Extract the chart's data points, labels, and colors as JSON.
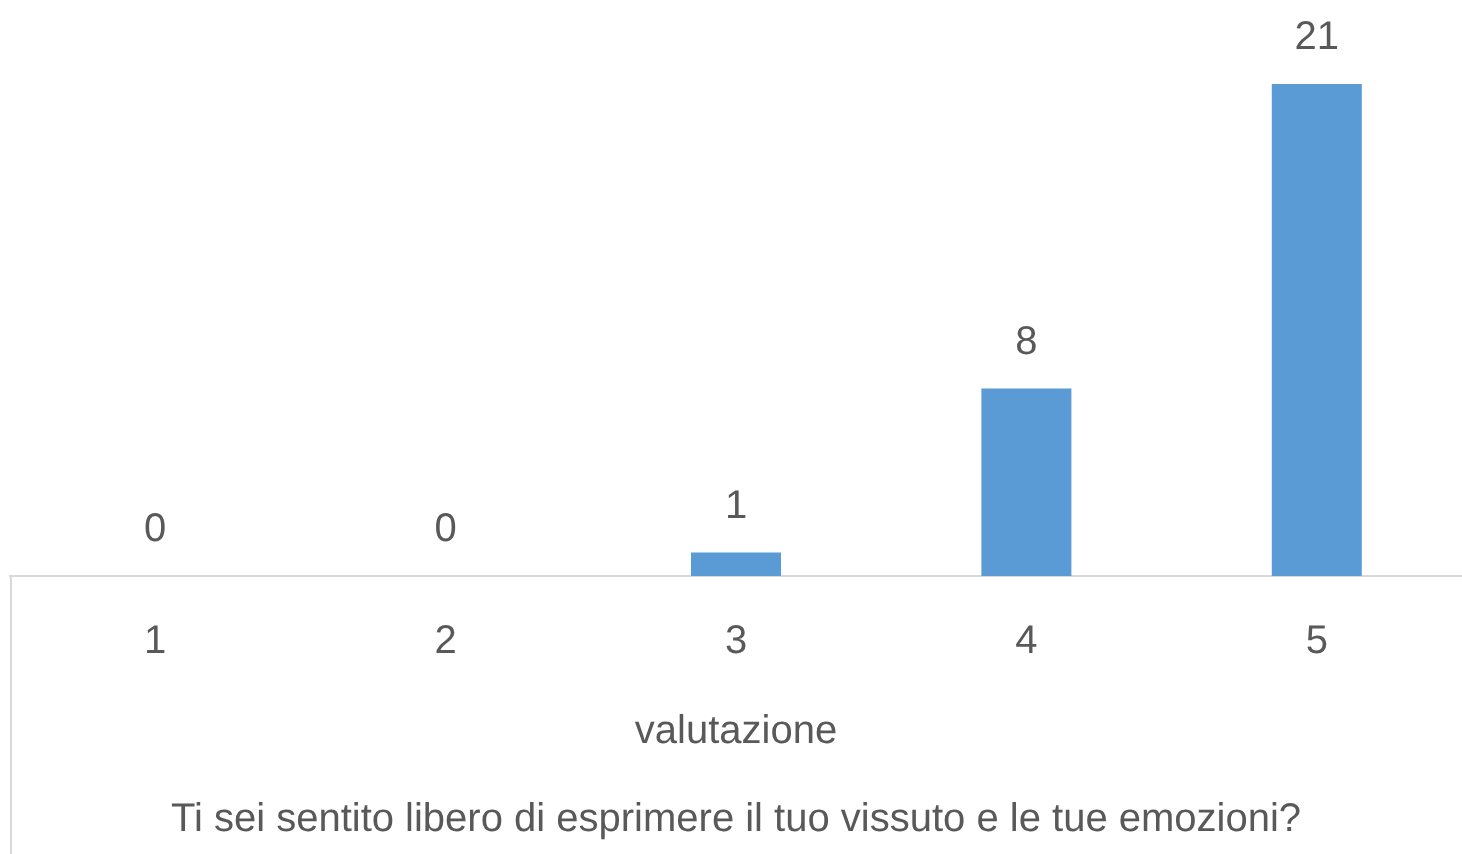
{
  "chart_data": {
    "type": "bar",
    "title": "Ti sei sentito libero di esprimere il tuo vissuto e le tue emozioni?",
    "xlabel": "valutazione",
    "categories": [
      "1",
      "2",
      "3",
      "4",
      "5"
    ],
    "values": [
      0,
      0,
      1,
      8,
      21
    ],
    "color": "#5b9bd5",
    "data_labels": true
  }
}
